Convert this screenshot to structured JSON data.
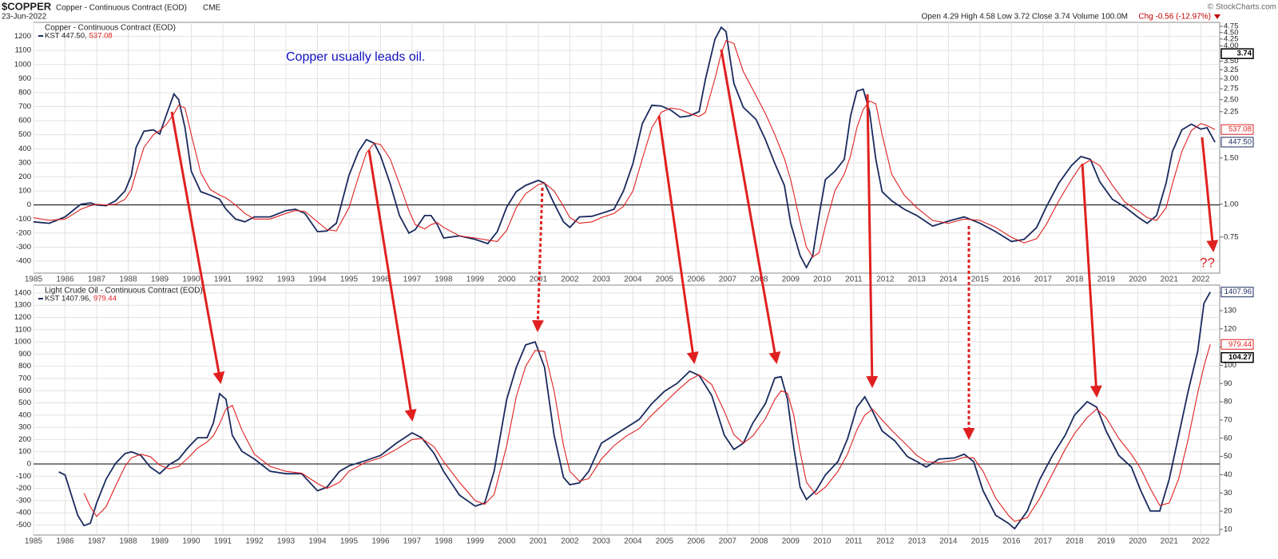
{
  "header": {
    "symbol": "$COPPER",
    "description": "Copper - Continuous Contract (EOD)",
    "exchange": "CME",
    "date": "23-Jun-2022",
    "quote": "Open 4.29 High 4.58 Low 3.72 Close 3.74 Volume 100.0M",
    "change": "Chg -0.56 (-12.97%)",
    "credit": "© StockCharts.com"
  },
  "chart_data": [
    {
      "type": "line",
      "title": "Copper - Continuous Contract (EOD)",
      "annotations": [
        "Copper usually leads oil.",
        "??"
      ],
      "x": [
        1985.0,
        1985.5,
        1986.0,
        1986.3,
        1986.5,
        1986.8,
        1987.0,
        1987.3,
        1987.6,
        1987.9,
        1988.1,
        1988.25,
        1988.5,
        1988.8,
        1989.0,
        1989.2,
        1989.45,
        1989.6,
        1989.8,
        1990.0,
        1990.3,
        1990.6,
        1990.9,
        1991.1,
        1991.4,
        1991.7,
        1992.0,
        1992.5,
        1993.0,
        1993.3,
        1993.6,
        1994.0,
        1994.3,
        1994.6,
        1995.0,
        1995.3,
        1995.55,
        1995.8,
        1996.0,
        1996.3,
        1996.6,
        1996.9,
        1997.1,
        1997.4,
        1997.6,
        1997.8,
        1998.0,
        1998.5,
        1999.0,
        1999.4,
        1999.7,
        2000.0,
        2000.3,
        2000.6,
        2001.0,
        2001.2,
        2001.5,
        2001.8,
        2002.0,
        2002.3,
        2002.7,
        2003.0,
        2003.4,
        2003.7,
        2004.0,
        2004.3,
        2004.6,
        2004.9,
        2005.2,
        2005.5,
        2005.8,
        2006.1,
        2006.3,
        2006.6,
        2006.8,
        2006.95,
        2007.2,
        2007.5,
        2007.9,
        2008.2,
        2008.5,
        2008.8,
        2009.0,
        2009.3,
        2009.5,
        2009.7,
        2009.9,
        2010.1,
        2010.4,
        2010.7,
        2010.9,
        2011.1,
        2011.3,
        2011.5,
        2011.7,
        2011.9,
        2012.2,
        2012.6,
        2013.0,
        2013.5,
        2014.0,
        2014.5,
        2015.0,
        2015.5,
        2016.0,
        2016.4,
        2016.8,
        2017.1,
        2017.5,
        2017.9,
        2018.2,
        2018.5,
        2018.8,
        2019.2,
        2019.6,
        2020.0,
        2020.3,
        2020.6,
        2020.9,
        2021.1,
        2021.4,
        2021.7,
        2022.0,
        2022.2,
        2022.45
      ],
      "series": [
        {
          "name": "KST 447.50,",
          "color": "#1a2a5e",
          "values": [
            -120,
            -130,
            -85,
            -30,
            5,
            15,
            0,
            -5,
            30,
            100,
            210,
            410,
            525,
            535,
            505,
            635,
            790,
            750,
            550,
            240,
            95,
            70,
            40,
            -30,
            -100,
            -120,
            -85,
            -85,
            -40,
            -30,
            -60,
            -190,
            -185,
            -130,
            210,
            380,
            465,
            440,
            350,
            155,
            -75,
            -200,
            -175,
            -75,
            -75,
            -140,
            -235,
            -220,
            -245,
            -275,
            -190,
            -15,
            95,
            140,
            175,
            155,
            10,
            -120,
            -160,
            -85,
            -80,
            -60,
            -30,
            100,
            295,
            580,
            710,
            705,
            675,
            625,
            635,
            665,
            895,
            1180,
            1265,
            1235,
            865,
            695,
            610,
            465,
            295,
            140,
            -130,
            -360,
            -445,
            -360,
            -75,
            180,
            240,
            325,
            635,
            810,
            825,
            665,
            325,
            95,
            30,
            -30,
            -75,
            -150,
            -115,
            -85,
            -130,
            -190,
            -260,
            -245,
            -160,
            -15,
            155,
            280,
            345,
            325,
            165,
            40,
            -15,
            -85,
            -130,
            -75,
            155,
            380,
            535,
            575,
            540,
            550,
            447.5
          ]
        },
        {
          "name": "537.08",
          "color": "#e02020",
          "values": [
            -90,
            -110,
            -100,
            -60,
            -30,
            -5,
            5,
            0,
            5,
            40,
            110,
            230,
            410,
            500,
            530,
            570,
            650,
            710,
            690,
            500,
            230,
            110,
            70,
            50,
            0,
            -60,
            -100,
            -100,
            -60,
            -40,
            -45,
            -120,
            -175,
            -185,
            -20,
            200,
            370,
            440,
            430,
            330,
            150,
            -40,
            -140,
            -170,
            -140,
            -125,
            -160,
            -220,
            -235,
            -250,
            -260,
            -180,
            -20,
            80,
            145,
            155,
            100,
            -10,
            -90,
            -130,
            -120,
            -90,
            -60,
            -10,
            100,
            330,
            550,
            660,
            690,
            680,
            650,
            630,
            660,
            900,
            1080,
            1170,
            1150,
            950,
            780,
            650,
            500,
            330,
            180,
            -120,
            -300,
            -370,
            -340,
            -150,
            100,
            220,
            350,
            550,
            680,
            740,
            720,
            500,
            220,
            70,
            -20,
            -110,
            -130,
            -100,
            -110,
            -160,
            -230,
            -270,
            -240,
            -140,
            30,
            180,
            280,
            320,
            280,
            140,
            20,
            -40,
            -90,
            -110,
            -20,
            150,
            380,
            530,
            580,
            565,
            537.08
          ]
        }
      ],
      "xlim": [
        1985,
        2022.6
      ],
      "xticks": [
        1985,
        1986,
        1987,
        1988,
        1989,
        1990,
        1991,
        1992,
        1993,
        1994,
        1995,
        1996,
        1997,
        1998,
        1999,
        2000,
        2001,
        2002,
        2003,
        2004,
        2005,
        2006,
        2007,
        2008,
        2009,
        2010,
        2011,
        2012,
        2013,
        2014,
        2015,
        2016,
        2017,
        2018,
        2019,
        2020,
        2021,
        2022
      ],
      "ylim": [
        -485,
        1300
      ],
      "yticks": [
        1200,
        1100,
        1000,
        900,
        800,
        700,
        600,
        500,
        400,
        300,
        200,
        100,
        0,
        -100,
        -200,
        -300,
        -400
      ],
      "y2lim": [
        0.547,
        4.92
      ],
      "y2scale": "log",
      "y2ticks": [
        {
          "value": 4.75,
          "label": "4.75"
        },
        {
          "value": 4.5,
          "label": "4.50"
        },
        {
          "value": 4.25,
          "label": "4.25"
        },
        {
          "value": 4,
          "label": "4.00"
        },
        {
          "value": 3.5,
          "label": "3.50"
        },
        {
          "value": 3.25,
          "label": "3.25"
        },
        {
          "value": 3,
          "label": "3.00"
        },
        {
          "value": 2.75,
          "label": "2.75"
        },
        {
          "value": 2.5,
          "label": "2.50"
        },
        {
          "value": 2.25,
          "label": "2.25"
        },
        {
          "value": 1.5,
          "label": "1.50"
        },
        {
          "value": 1,
          "label": "1.00"
        },
        {
          "value": 0.75,
          "label": "0.75"
        }
      ],
      "last_values": [
        {
          "value": 3.74,
          "label": "3.74",
          "axis": "y2",
          "color": "#000000"
        },
        {
          "value": 537.08,
          "label": "537.08",
          "axis": "y",
          "color": "#e02020"
        },
        {
          "value": 447.5,
          "label": "447.50",
          "axis": "y",
          "color": "#1a2a5e"
        }
      ],
      "grid": true,
      "zero_line": true
    },
    {
      "type": "line",
      "title": "Light Crude Oil - Continuous Contract (EOD)",
      "x": [
        1985.8,
        1986.0,
        1986.2,
        1986.4,
        1986.6,
        1986.8,
        1987.0,
        1987.3,
        1987.6,
        1987.9,
        1988.1,
        1988.4,
        1988.7,
        1989.0,
        1989.3,
        1989.6,
        1989.9,
        1990.2,
        1990.5,
        1990.7,
        1990.9,
        1991.1,
        1991.3,
        1991.6,
        1992.0,
        1992.5,
        1993.0,
        1993.5,
        1994.0,
        1994.3,
        1994.7,
        1995.0,
        1995.5,
        1996.0,
        1996.5,
        1997.0,
        1997.3,
        1997.7,
        1998.0,
        1998.5,
        1999.0,
        1999.3,
        1999.6,
        2000.0,
        2000.3,
        2000.6,
        2000.9,
        2001.2,
        2001.5,
        2001.8,
        2002.0,
        2002.3,
        2002.6,
        2003.0,
        2003.4,
        2003.8,
        2004.2,
        2004.6,
        2005.0,
        2005.4,
        2005.8,
        2006.1,
        2006.5,
        2006.9,
        2007.2,
        2007.5,
        2007.8,
        2008.2,
        2008.5,
        2008.7,
        2008.9,
        2009.1,
        2009.3,
        2009.5,
        2009.8,
        2010.1,
        2010.5,
        2010.8,
        2011.1,
        2011.35,
        2011.6,
        2011.9,
        2012.3,
        2012.7,
        2013.0,
        2013.3,
        2013.7,
        2014.2,
        2014.5,
        2014.8,
        2015.1,
        2015.5,
        2015.9,
        2016.1,
        2016.5,
        2016.9,
        2017.3,
        2017.7,
        2018.0,
        2018.4,
        2018.7,
        2019.0,
        2019.4,
        2019.8,
        2020.1,
        2020.4,
        2020.7,
        2021.0,
        2021.3,
        2021.6,
        2021.9,
        2022.1,
        2022.3
      ],
      "series": [
        {
          "name": "KST 1407.96,",
          "color": "#1a2a5e",
          "values": [
            -65,
            -90,
            -255,
            -420,
            -505,
            -485,
            -320,
            -125,
            5,
            85,
            100,
            70,
            -25,
            -80,
            -5,
            40,
            135,
            215,
            215,
            335,
            575,
            530,
            235,
            105,
            40,
            -60,
            -80,
            -80,
            -220,
            -190,
            -60,
            -15,
            25,
            70,
            170,
            255,
            215,
            85,
            -60,
            -255,
            -345,
            -320,
            -60,
            530,
            790,
            975,
            1000,
            790,
            235,
            -110,
            -170,
            -155,
            -60,
            170,
            235,
            300,
            365,
            495,
            595,
            660,
            760,
            725,
            560,
            235,
            120,
            170,
            335,
            495,
            705,
            715,
            530,
            135,
            -190,
            -290,
            -220,
            -90,
            20,
            205,
            465,
            550,
            430,
            270,
            190,
            60,
            20,
            -25,
            40,
            50,
            80,
            20,
            -220,
            -420,
            -485,
            -530,
            -385,
            -125,
            70,
            235,
            400,
            510,
            465,
            270,
            70,
            -25,
            -220,
            -385,
            -385,
            -125,
            235,
            595,
            920,
            1315,
            1407.96
          ]
        },
        {
          "name": "979.44",
          "color": "#e02020",
          "values": [
            null,
            null,
            null,
            null,
            -240,
            -350,
            -430,
            -350,
            -180,
            -20,
            50,
            80,
            60,
            -10,
            -40,
            -20,
            50,
            130,
            180,
            230,
            330,
            450,
            480,
            280,
            80,
            -20,
            -60,
            -75,
            -160,
            -200,
            -150,
            -60,
            10,
            50,
            120,
            200,
            210,
            140,
            20,
            -150,
            -300,
            -330,
            -250,
            150,
            550,
            800,
            930,
            920,
            600,
            150,
            -60,
            -140,
            -120,
            40,
            150,
            230,
            290,
            400,
            500,
            600,
            690,
            730,
            650,
            430,
            240,
            170,
            230,
            370,
            530,
            600,
            580,
            400,
            100,
            -150,
            -250,
            -190,
            -60,
            80,
            280,
            400,
            450,
            360,
            250,
            150,
            70,
            20,
            10,
            30,
            55,
            50,
            -60,
            -280,
            -420,
            -470,
            -440,
            -280,
            -80,
            120,
            250,
            380,
            450,
            380,
            210,
            80,
            -40,
            -200,
            -340,
            -320,
            -120,
            200,
            580,
            800,
            979.44
          ]
        }
      ],
      "xlim": [
        1985,
        2022.6
      ],
      "xticks": [
        1985,
        1986,
        1987,
        1988,
        1989,
        1990,
        1991,
        1992,
        1993,
        1994,
        1995,
        1996,
        1997,
        1998,
        1999,
        2000,
        2001,
        2002,
        2003,
        2004,
        2005,
        2006,
        2007,
        2008,
        2009,
        2010,
        2011,
        2012,
        2013,
        2014,
        2015,
        2016,
        2017,
        2018,
        2019,
        2020,
        2021,
        2022
      ],
      "ylim": [
        -582,
        1465
      ],
      "yticks": [
        1400,
        1300,
        1200,
        1100,
        1000,
        900,
        800,
        700,
        600,
        500,
        400,
        300,
        200,
        100,
        0,
        -100,
        -200,
        -300,
        -400,
        -500
      ],
      "y2lim": [
        6.9,
        144
      ],
      "y2scale": "linear",
      "y2ticks": [
        140,
        130,
        120,
        110,
        100,
        90,
        80,
        70,
        60,
        50,
        40,
        30,
        20,
        10
      ],
      "last_values": [
        {
          "value": 1407.96,
          "label": "1407.96",
          "axis": "y",
          "color": "#1a2a5e"
        },
        {
          "value": 979.44,
          "label": "979.44",
          "axis": "y",
          "color": "#e02020"
        },
        {
          "value": 104.27,
          "label": "104.27",
          "axis": "y2",
          "color": "#000000"
        }
      ],
      "grid": true,
      "zero_line": true
    }
  ]
}
